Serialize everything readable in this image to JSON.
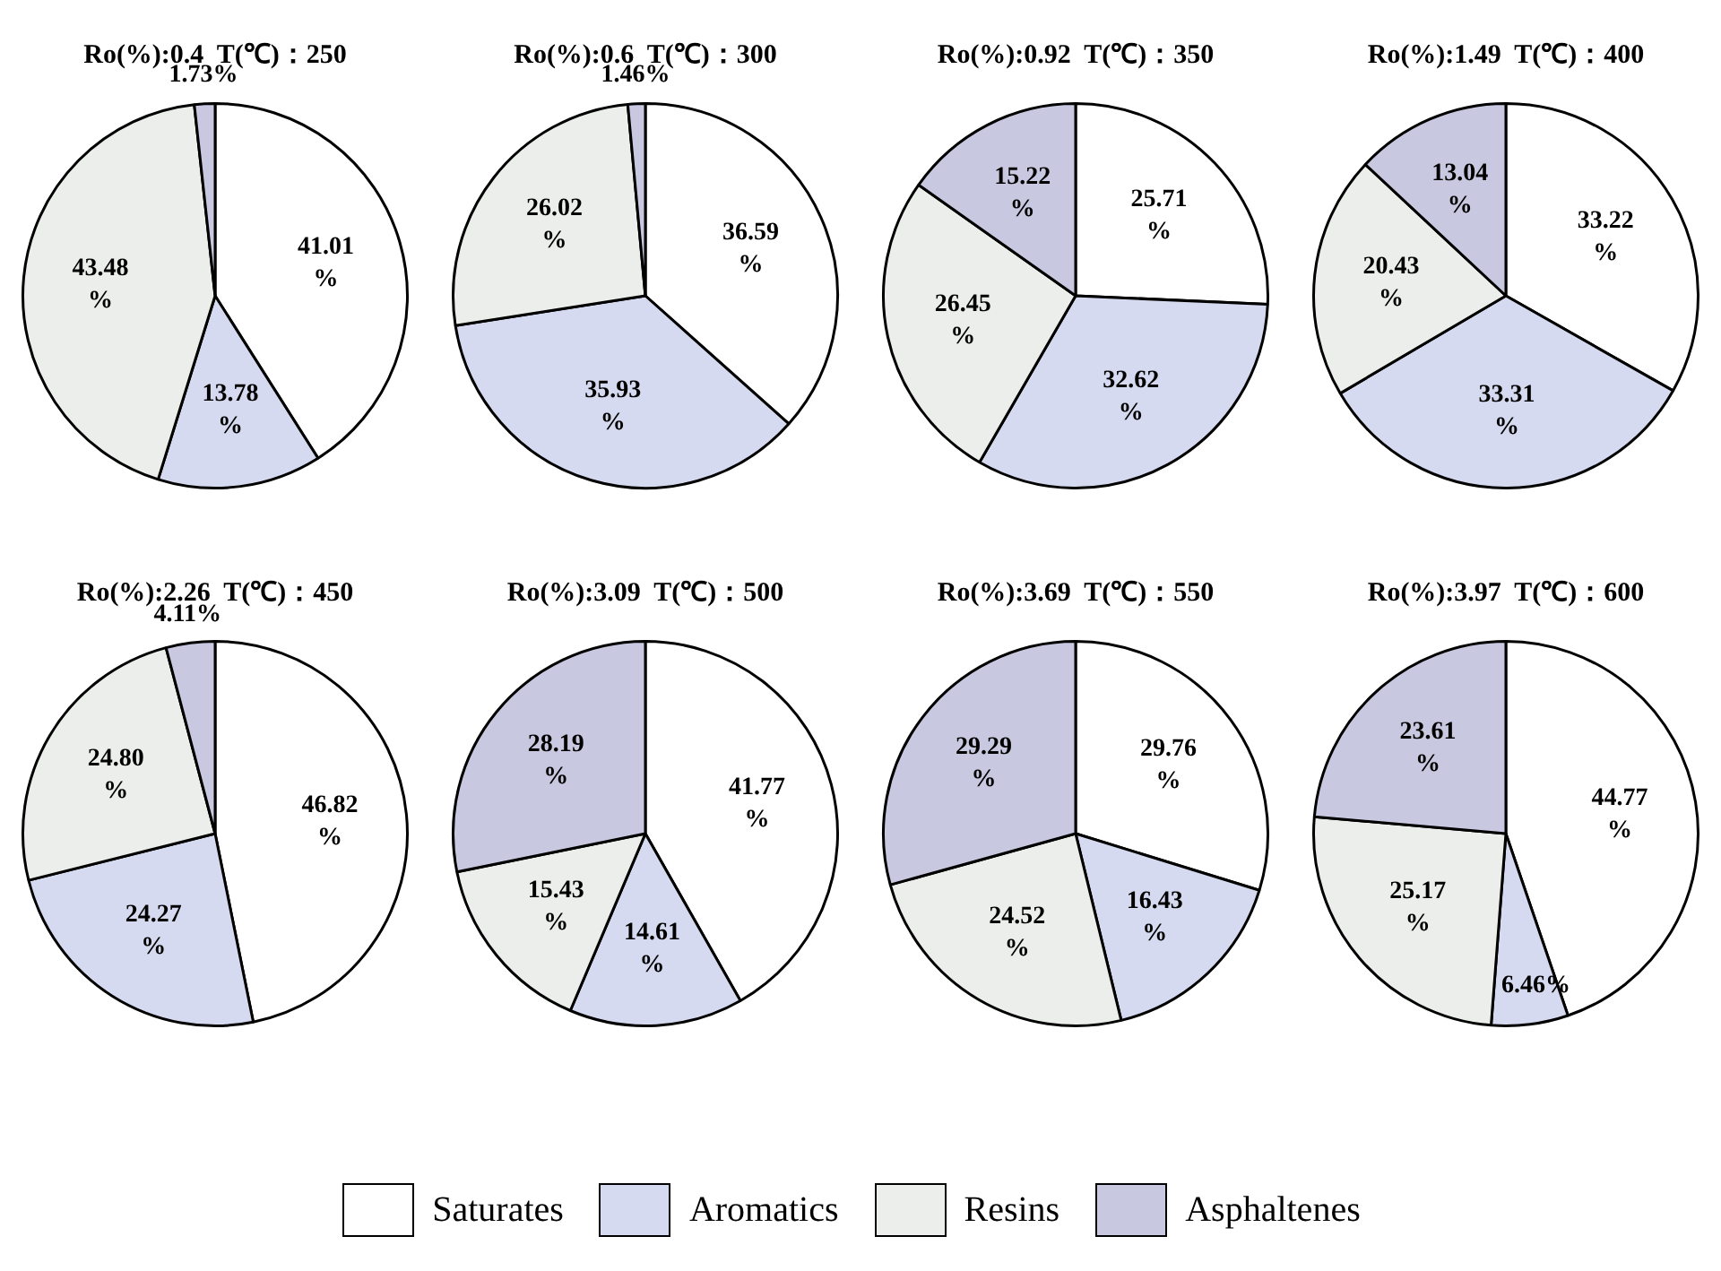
{
  "chart_data": [
    {
      "type": "pie",
      "title": "Ro(%):0.4  T(℃)：250",
      "categories": [
        "Saturates",
        "Aromatics",
        "Resins",
        "Asphaltenes"
      ],
      "values": [
        41.01,
        13.78,
        43.48,
        1.73
      ],
      "colors": [
        "#ffffff",
        "#d6daf0",
        "#ebeeeb",
        "#c8c8e0"
      ],
      "value_labels": [
        "41.01%",
        "13.78%",
        "43.48%",
        "1.73%"
      ],
      "legend": "bottom"
    },
    {
      "type": "pie",
      "title": "Ro(%):0.6  T(℃)：300",
      "values": [
        36.59,
        35.93,
        26.02,
        1.46
      ],
      "colors": [
        "#ffffff",
        "#d6daf0",
        "#ebeeeb",
        "#c8c8e0"
      ],
      "value_labels": [
        "36.59%",
        "35.93%",
        "26.02%",
        "1.46%"
      ]
    },
    {
      "type": "pie",
      "title": "Ro(%):0.92  T(℃)：350",
      "values": [
        25.71,
        32.62,
        26.45,
        15.22
      ],
      "colors": [
        "#ffffff",
        "#d6daf0",
        "#ebeeeb",
        "#c8c8e0"
      ],
      "value_labels": [
        "25.71%",
        "32.62%",
        "26.45%",
        "15.22%"
      ]
    },
    {
      "type": "pie",
      "title": "Ro(%):1.49  T(℃)：400",
      "values": [
        33.22,
        33.31,
        20.43,
        13.04
      ],
      "colors": [
        "#ffffff",
        "#d6daf0",
        "#ebeeeb",
        "#c8c8e0"
      ],
      "value_labels": [
        "33.22%",
        "33.31%",
        "20.43%",
        "13.04%"
      ]
    },
    {
      "type": "pie",
      "title": "Ro(%):2.26  T(℃)：450",
      "values": [
        46.82,
        24.27,
        24.8,
        4.11
      ],
      "colors": [
        "#ffffff",
        "#d6daf0",
        "#ebeeeb",
        "#c8c8e0"
      ],
      "value_labels": [
        "46.82%",
        "24.27%",
        "24.80%",
        "4.11%"
      ]
    },
    {
      "type": "pie",
      "title": "Ro(%):3.09  T(℃)：500",
      "values": [
        41.77,
        14.61,
        15.43,
        28.19
      ],
      "colors": [
        "#ffffff",
        "#d6daf0",
        "#ebeeeb",
        "#c8c8e0"
      ],
      "value_labels": [
        "41.77%",
        "14.61%",
        "15.43%",
        "28.19%"
      ]
    },
    {
      "type": "pie",
      "title": "Ro(%):3.69  T(℃)：550",
      "values": [
        29.76,
        16.43,
        24.52,
        29.29
      ],
      "colors": [
        "#ffffff",
        "#d6daf0",
        "#ebeeeb",
        "#c8c8e0"
      ],
      "value_labels": [
        "29.76%",
        "16.43%",
        "24.52%",
        "29.29%"
      ]
    },
    {
      "type": "pie",
      "title": "Ro(%):3.97  T(℃)：600",
      "values": [
        44.77,
        6.46,
        25.17,
        23.61
      ],
      "colors": [
        "#ffffff",
        "#d6daf0",
        "#ebeeeb",
        "#c8c8e0"
      ],
      "value_labels": [
        "44.77%",
        "6.46%",
        "25.17%",
        "23.61%"
      ]
    }
  ]
}
